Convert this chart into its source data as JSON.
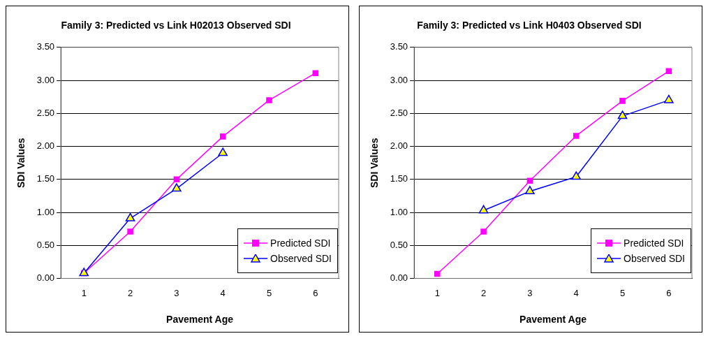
{
  "chart_data": [
    {
      "type": "line",
      "title": "Family 3: Predicted vs Link H02013 Observed SDI",
      "xlabel": "Pavement Age",
      "ylabel": "SDI Values",
      "categories": [
        "1",
        "2",
        "3",
        "4",
        "5",
        "6"
      ],
      "ylim": [
        0,
        3.5
      ],
      "yticks": [
        {
          "value": 0,
          "label": "0.00"
        },
        {
          "value": 0.5,
          "label": "0.50"
        },
        {
          "value": 1,
          "label": "1.00"
        },
        {
          "value": 1.5,
          "label": "1.50"
        },
        {
          "value": 2,
          "label": "2.00"
        },
        {
          "value": 2.5,
          "label": "2.50"
        },
        {
          "value": 3,
          "label": "3.00"
        },
        {
          "value": 3.5,
          "label": "3.50"
        }
      ],
      "grid": "y",
      "legend": "bottom right",
      "series": [
        {
          "name": "Predicted SDI",
          "color": "#ff00ff",
          "marker": "square",
          "values": [
            0.08,
            0.71,
            1.5,
            2.15,
            2.7,
            3.11
          ]
        },
        {
          "name": "Observed SDI",
          "color": "#0000ff",
          "marker": "triangle",
          "values": [
            0.08,
            0.91,
            1.36,
            1.9,
            null,
            null
          ]
        }
      ]
    },
    {
      "type": "line",
      "title": "Family 3: Predicted vs Link H0403 Observed SDI",
      "xlabel": "Pavement Age",
      "ylabel": "SDI Values",
      "categories": [
        "1",
        "2",
        "3",
        "4",
        "5",
        "6"
      ],
      "ylim": [
        0,
        3.5
      ],
      "yticks": [
        {
          "value": 0,
          "label": "0.00"
        },
        {
          "value": 0.5,
          "label": "0.50"
        },
        {
          "value": 1,
          "label": "1.00"
        },
        {
          "value": 1.5,
          "label": "1.50"
        },
        {
          "value": 2,
          "label": "2.00"
        },
        {
          "value": 2.5,
          "label": "2.50"
        },
        {
          "value": 3,
          "label": "3.00"
        },
        {
          "value": 3.5,
          "label": "3.50"
        }
      ],
      "grid": "y",
      "legend": "bottom right",
      "series": [
        {
          "name": "Predicted SDI",
          "color": "#ff00ff",
          "marker": "square",
          "values": [
            0.07,
            0.71,
            1.48,
            2.16,
            2.69,
            3.14
          ]
        },
        {
          "name": "Observed SDI",
          "color": "#0000ff",
          "marker": "triangle",
          "values": [
            null,
            1.03,
            1.32,
            1.54,
            2.46,
            2.7
          ]
        }
      ]
    }
  ]
}
